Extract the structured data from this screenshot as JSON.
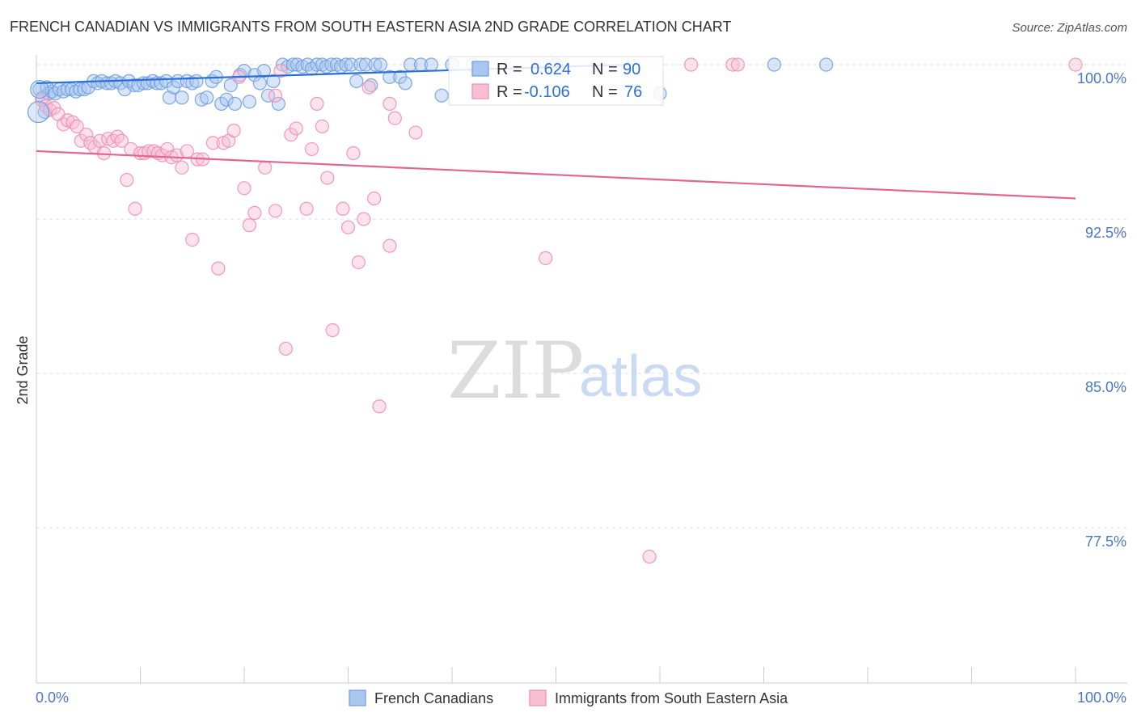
{
  "chart_data": {
    "type": "scatter",
    "title": "FRENCH CANADIAN VS IMMIGRANTS FROM SOUTH EASTERN ASIA 2ND GRADE CORRELATION CHART",
    "source": "Source: ZipAtlas.com",
    "ylabel": "2nd Grade",
    "xlabel": "",
    "xlim": [
      0,
      100
    ],
    "ylim": [
      71.0,
      100.7
    ],
    "y_ticks": [
      {
        "value": 100.0,
        "label": "100.0%"
      },
      {
        "value": 92.5,
        "label": "92.5%"
      },
      {
        "value": 85.0,
        "label": "85.0%"
      },
      {
        "value": 77.5,
        "label": "77.5%"
      }
    ],
    "x_tick_labels": {
      "left": "0.0%",
      "right": "100.0%"
    },
    "watermark": {
      "zip": "ZIP",
      "atlas": "atlas"
    },
    "legend": {
      "r_label": "R =",
      "n_label": "N =",
      "entries": [
        {
          "name": "French Canadians",
          "r": "0.624",
          "n": "90"
        },
        {
          "name": "Immigrants from South Eastern Asia",
          "r": "-0.106",
          "n": "76"
        }
      ]
    },
    "series": [
      {
        "name": "French Canadians",
        "color": "#6f9fe0",
        "fill": "#a9c6ef",
        "line_color": "#2b6fd6",
        "trend": {
          "x": [
            0,
            57
          ],
          "y": [
            99.1,
            100.0
          ]
        },
        "points": [
          [
            0.3,
            98.8
          ],
          [
            0.6,
            98.4
          ],
          [
            0.8,
            97.7
          ],
          [
            1.0,
            98.9
          ],
          [
            1.2,
            98.6
          ],
          [
            1.5,
            98.7
          ],
          [
            1.8,
            98.6
          ],
          [
            2.2,
            98.8
          ],
          [
            2.6,
            98.7
          ],
          [
            3.0,
            98.8
          ],
          [
            3.4,
            98.8
          ],
          [
            3.8,
            98.7
          ],
          [
            4.2,
            98.8
          ],
          [
            4.6,
            98.8
          ],
          [
            5.0,
            98.9
          ],
          [
            5.5,
            99.2
          ],
          [
            5.9,
            99.1
          ],
          [
            6.3,
            99.2
          ],
          [
            6.8,
            99.1
          ],
          [
            7.2,
            99.1
          ],
          [
            7.6,
            99.2
          ],
          [
            8.1,
            99.1
          ],
          [
            8.5,
            98.8
          ],
          [
            8.9,
            99.2
          ],
          [
            9.4,
            99.0
          ],
          [
            9.8,
            99.0
          ],
          [
            10.3,
            99.1
          ],
          [
            10.7,
            99.1
          ],
          [
            11.2,
            99.2
          ],
          [
            11.6,
            99.1
          ],
          [
            12.0,
            99.1
          ],
          [
            12.5,
            99.2
          ],
          [
            12.8,
            98.4
          ],
          [
            13.2,
            98.9
          ],
          [
            13.6,
            99.2
          ],
          [
            14.0,
            98.4
          ],
          [
            14.5,
            99.2
          ],
          [
            15.0,
            99.1
          ],
          [
            15.4,
            99.2
          ],
          [
            15.9,
            98.3
          ],
          [
            16.4,
            98.4
          ],
          [
            16.9,
            99.2
          ],
          [
            17.3,
            99.4
          ],
          [
            17.8,
            98.1
          ],
          [
            18.3,
            98.3
          ],
          [
            18.7,
            99.0
          ],
          [
            19.1,
            98.1
          ],
          [
            19.6,
            99.5
          ],
          [
            20.0,
            99.7
          ],
          [
            20.5,
            98.2
          ],
          [
            21.0,
            99.5
          ],
          [
            21.5,
            99.1
          ],
          [
            21.9,
            99.7
          ],
          [
            22.3,
            98.5
          ],
          [
            22.8,
            99.2
          ],
          [
            23.3,
            98.1
          ],
          [
            23.7,
            100.0
          ],
          [
            24.2,
            99.9
          ],
          [
            24.7,
            100.0
          ],
          [
            25.1,
            100.0
          ],
          [
            25.6,
            99.9
          ],
          [
            26.1,
            100.0
          ],
          [
            26.5,
            99.8
          ],
          [
            27.0,
            100.0
          ],
          [
            27.5,
            100.0
          ],
          [
            27.9,
            99.9
          ],
          [
            28.4,
            100.0
          ],
          [
            28.9,
            100.0
          ],
          [
            29.3,
            99.9
          ],
          [
            29.8,
            100.0
          ],
          [
            30.3,
            100.0
          ],
          [
            30.8,
            99.2
          ],
          [
            31.2,
            100.0
          ],
          [
            31.7,
            100.0
          ],
          [
            32.2,
            99.0
          ],
          [
            32.6,
            100.0
          ],
          [
            33.1,
            100.0
          ],
          [
            34.0,
            99.4
          ],
          [
            35.0,
            99.4
          ],
          [
            35.5,
            99.1
          ],
          [
            36.0,
            100.0
          ],
          [
            37.0,
            100.0
          ],
          [
            38.0,
            100.0
          ],
          [
            39.0,
            98.5
          ],
          [
            40.0,
            100.0
          ],
          [
            42.0,
            100.0
          ],
          [
            50.0,
            100.0
          ],
          [
            60.0,
            98.6
          ],
          [
            71.0,
            100.0
          ],
          [
            76.0,
            100.0
          ]
        ]
      },
      {
        "name": "Immigrants from South Eastern Asia",
        "color": "#ee8fb0",
        "fill": "#f7bfd2",
        "line_color": "#e4658f",
        "trend": {
          "x": [
            0,
            100
          ],
          "y": [
            95.8,
            93.5
          ]
        },
        "points": [
          [
            0.5,
            98.3
          ],
          [
            0.9,
            98.0
          ],
          [
            1.3,
            97.8
          ],
          [
            1.7,
            97.9
          ],
          [
            2.1,
            97.6
          ],
          [
            2.6,
            97.1
          ],
          [
            3.0,
            97.3
          ],
          [
            3.5,
            97.2
          ],
          [
            3.9,
            97.0
          ],
          [
            4.3,
            96.3
          ],
          [
            4.8,
            96.6
          ],
          [
            5.2,
            96.2
          ],
          [
            5.6,
            96.0
          ],
          [
            6.1,
            96.3
          ],
          [
            6.5,
            95.7
          ],
          [
            6.9,
            96.4
          ],
          [
            7.4,
            96.3
          ],
          [
            7.8,
            96.5
          ],
          [
            8.2,
            96.3
          ],
          [
            8.7,
            94.4
          ],
          [
            9.1,
            95.9
          ],
          [
            9.5,
            93.0
          ],
          [
            10.0,
            95.7
          ],
          [
            10.4,
            95.7
          ],
          [
            10.8,
            95.8
          ],
          [
            11.3,
            95.8
          ],
          [
            11.7,
            95.7
          ],
          [
            12.1,
            95.6
          ],
          [
            12.6,
            95.9
          ],
          [
            13.0,
            95.5
          ],
          [
            13.5,
            95.6
          ],
          [
            14.0,
            95.0
          ],
          [
            14.5,
            95.8
          ],
          [
            15.0,
            91.5
          ],
          [
            15.5,
            95.4
          ],
          [
            16.0,
            95.4
          ],
          [
            17.0,
            96.2
          ],
          [
            17.5,
            90.1
          ],
          [
            18.0,
            96.2
          ],
          [
            18.5,
            96.3
          ],
          [
            19.0,
            96.8
          ],
          [
            19.5,
            99.4
          ],
          [
            20.0,
            94.0
          ],
          [
            20.5,
            92.2
          ],
          [
            21.0,
            92.8
          ],
          [
            22.0,
            95.0
          ],
          [
            23.0,
            92.9
          ],
          [
            23.5,
            99.7
          ],
          [
            24.0,
            86.2
          ],
          [
            24.5,
            96.6
          ],
          [
            25.0,
            96.9
          ],
          [
            26.0,
            93.0
          ],
          [
            26.5,
            95.9
          ],
          [
            27.0,
            98.1
          ],
          [
            27.5,
            97.0
          ],
          [
            28.0,
            94.5
          ],
          [
            28.5,
            87.1
          ],
          [
            29.5,
            93.0
          ],
          [
            30.0,
            92.1
          ],
          [
            30.5,
            95.7
          ],
          [
            31.0,
            90.4
          ],
          [
            31.5,
            92.5
          ],
          [
            32.0,
            98.9
          ],
          [
            32.5,
            93.5
          ],
          [
            33.0,
            83.4
          ],
          [
            34.0,
            91.2
          ],
          [
            34.0,
            98.1
          ],
          [
            34.5,
            97.4
          ],
          [
            36.5,
            96.7
          ],
          [
            49.0,
            90.6
          ],
          [
            59.0,
            76.1
          ],
          [
            63.0,
            100.0
          ],
          [
            67.0,
            100.0
          ],
          [
            67.5,
            100.0
          ],
          [
            100.0,
            100.0
          ],
          [
            23.0,
            98.5
          ]
        ]
      }
    ]
  }
}
